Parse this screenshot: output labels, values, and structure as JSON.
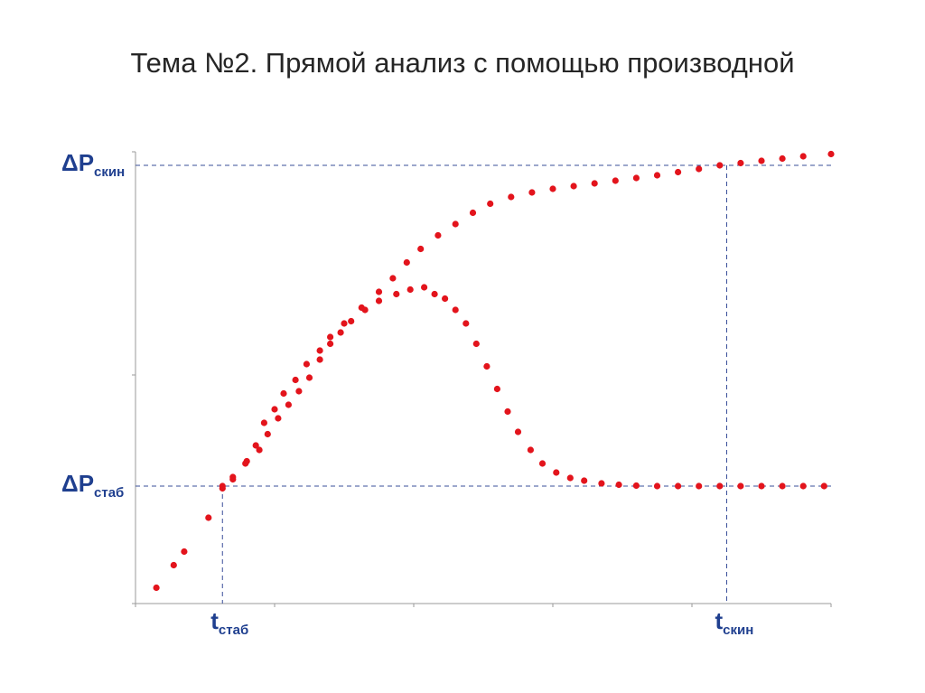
{
  "slide": {
    "title": "Тема №2. Прямой анализ с помощью производной"
  },
  "chart_data": {
    "type": "scatter",
    "title": "",
    "xlabel": "",
    "ylabel": "",
    "xlim": [
      0,
      100
    ],
    "ylim": [
      0,
      100
    ],
    "grid": false,
    "legend": "none",
    "colors": {
      "points": "#e3141c",
      "guides": "#3a4f9a",
      "axis": "#9a9a9a",
      "labels": "#1f3f8f"
    },
    "y_markers": [
      {
        "id": "skin",
        "main": "ΔP",
        "sub": "скин",
        "y": 97
      },
      {
        "id": "stab",
        "main": "ΔP",
        "sub": "стаб",
        "y": 26
      }
    ],
    "x_markers": [
      {
        "id": "stab",
        "main": "t",
        "sub": "стаб",
        "x": 12.5
      },
      {
        "id": "skin",
        "main": "t",
        "sub": "скин",
        "x": 85
      }
    ],
    "series": [
      {
        "values": [
          [
            3,
            3.5
          ],
          [
            5.5,
            8.5
          ],
          [
            7,
            11.5
          ],
          [
            10.5,
            19
          ],
          [
            12.5,
            25.5
          ],
          [
            14,
            28
          ],
          [
            15.8,
            31
          ],
          [
            17.3,
            35
          ],
          [
            18.5,
            40
          ],
          [
            20,
            43
          ],
          [
            21.3,
            46.5
          ],
          [
            23,
            49.5
          ],
          [
            24.6,
            53
          ],
          [
            26.5,
            56
          ],
          [
            28,
            59
          ],
          [
            30,
            62
          ],
          [
            32.5,
            65.5
          ],
          [
            35,
            69
          ],
          [
            37,
            72
          ],
          [
            39,
            75.5
          ],
          [
            41,
            78.5
          ],
          [
            43.5,
            81.5
          ],
          [
            46,
            84
          ],
          [
            48.5,
            86.5
          ],
          [
            51,
            88.5
          ],
          [
            54,
            90
          ],
          [
            57,
            91
          ],
          [
            60,
            91.8
          ],
          [
            63,
            92.4
          ],
          [
            66,
            93
          ],
          [
            69,
            93.6
          ],
          [
            72,
            94.2
          ],
          [
            75,
            94.8
          ],
          [
            78,
            95.5
          ],
          [
            81,
            96.2
          ],
          [
            84,
            97
          ],
          [
            87,
            97.5
          ],
          [
            90,
            98
          ],
          [
            93,
            98.5
          ],
          [
            96,
            99
          ],
          [
            100,
            99.5
          ]
        ]
      },
      {
        "values": [
          [
            12.5,
            26
          ],
          [
            14,
            27.5
          ],
          [
            16,
            31.5
          ],
          [
            17.8,
            34
          ],
          [
            19,
            37.5
          ],
          [
            20.5,
            41
          ],
          [
            22,
            44
          ],
          [
            23.5,
            47
          ],
          [
            25,
            50
          ],
          [
            26.5,
            54
          ],
          [
            28,
            57.5
          ],
          [
            29.5,
            60
          ],
          [
            31,
            62.5
          ],
          [
            33,
            65
          ],
          [
            35,
            67
          ],
          [
            37.5,
            68.5
          ],
          [
            39.5,
            69.5
          ],
          [
            41.5,
            70
          ],
          [
            43,
            68.5
          ],
          [
            44.5,
            67.5
          ],
          [
            46,
            65
          ],
          [
            47.5,
            62
          ],
          [
            49,
            57.5
          ],
          [
            50.5,
            52.5
          ],
          [
            52,
            47.5
          ],
          [
            53.5,
            42.5
          ],
          [
            55,
            38
          ],
          [
            56.8,
            34
          ],
          [
            58.5,
            31
          ],
          [
            60.5,
            29
          ],
          [
            62.5,
            27.8
          ],
          [
            64.5,
            27.2
          ],
          [
            67,
            26.6
          ],
          [
            69.5,
            26.3
          ],
          [
            72,
            26.1
          ],
          [
            75,
            26
          ],
          [
            78,
            26
          ],
          [
            81,
            26
          ],
          [
            84,
            26
          ],
          [
            87,
            26
          ],
          [
            90,
            26
          ],
          [
            93,
            26
          ],
          [
            96,
            26
          ],
          [
            99,
            26
          ]
        ]
      }
    ]
  }
}
